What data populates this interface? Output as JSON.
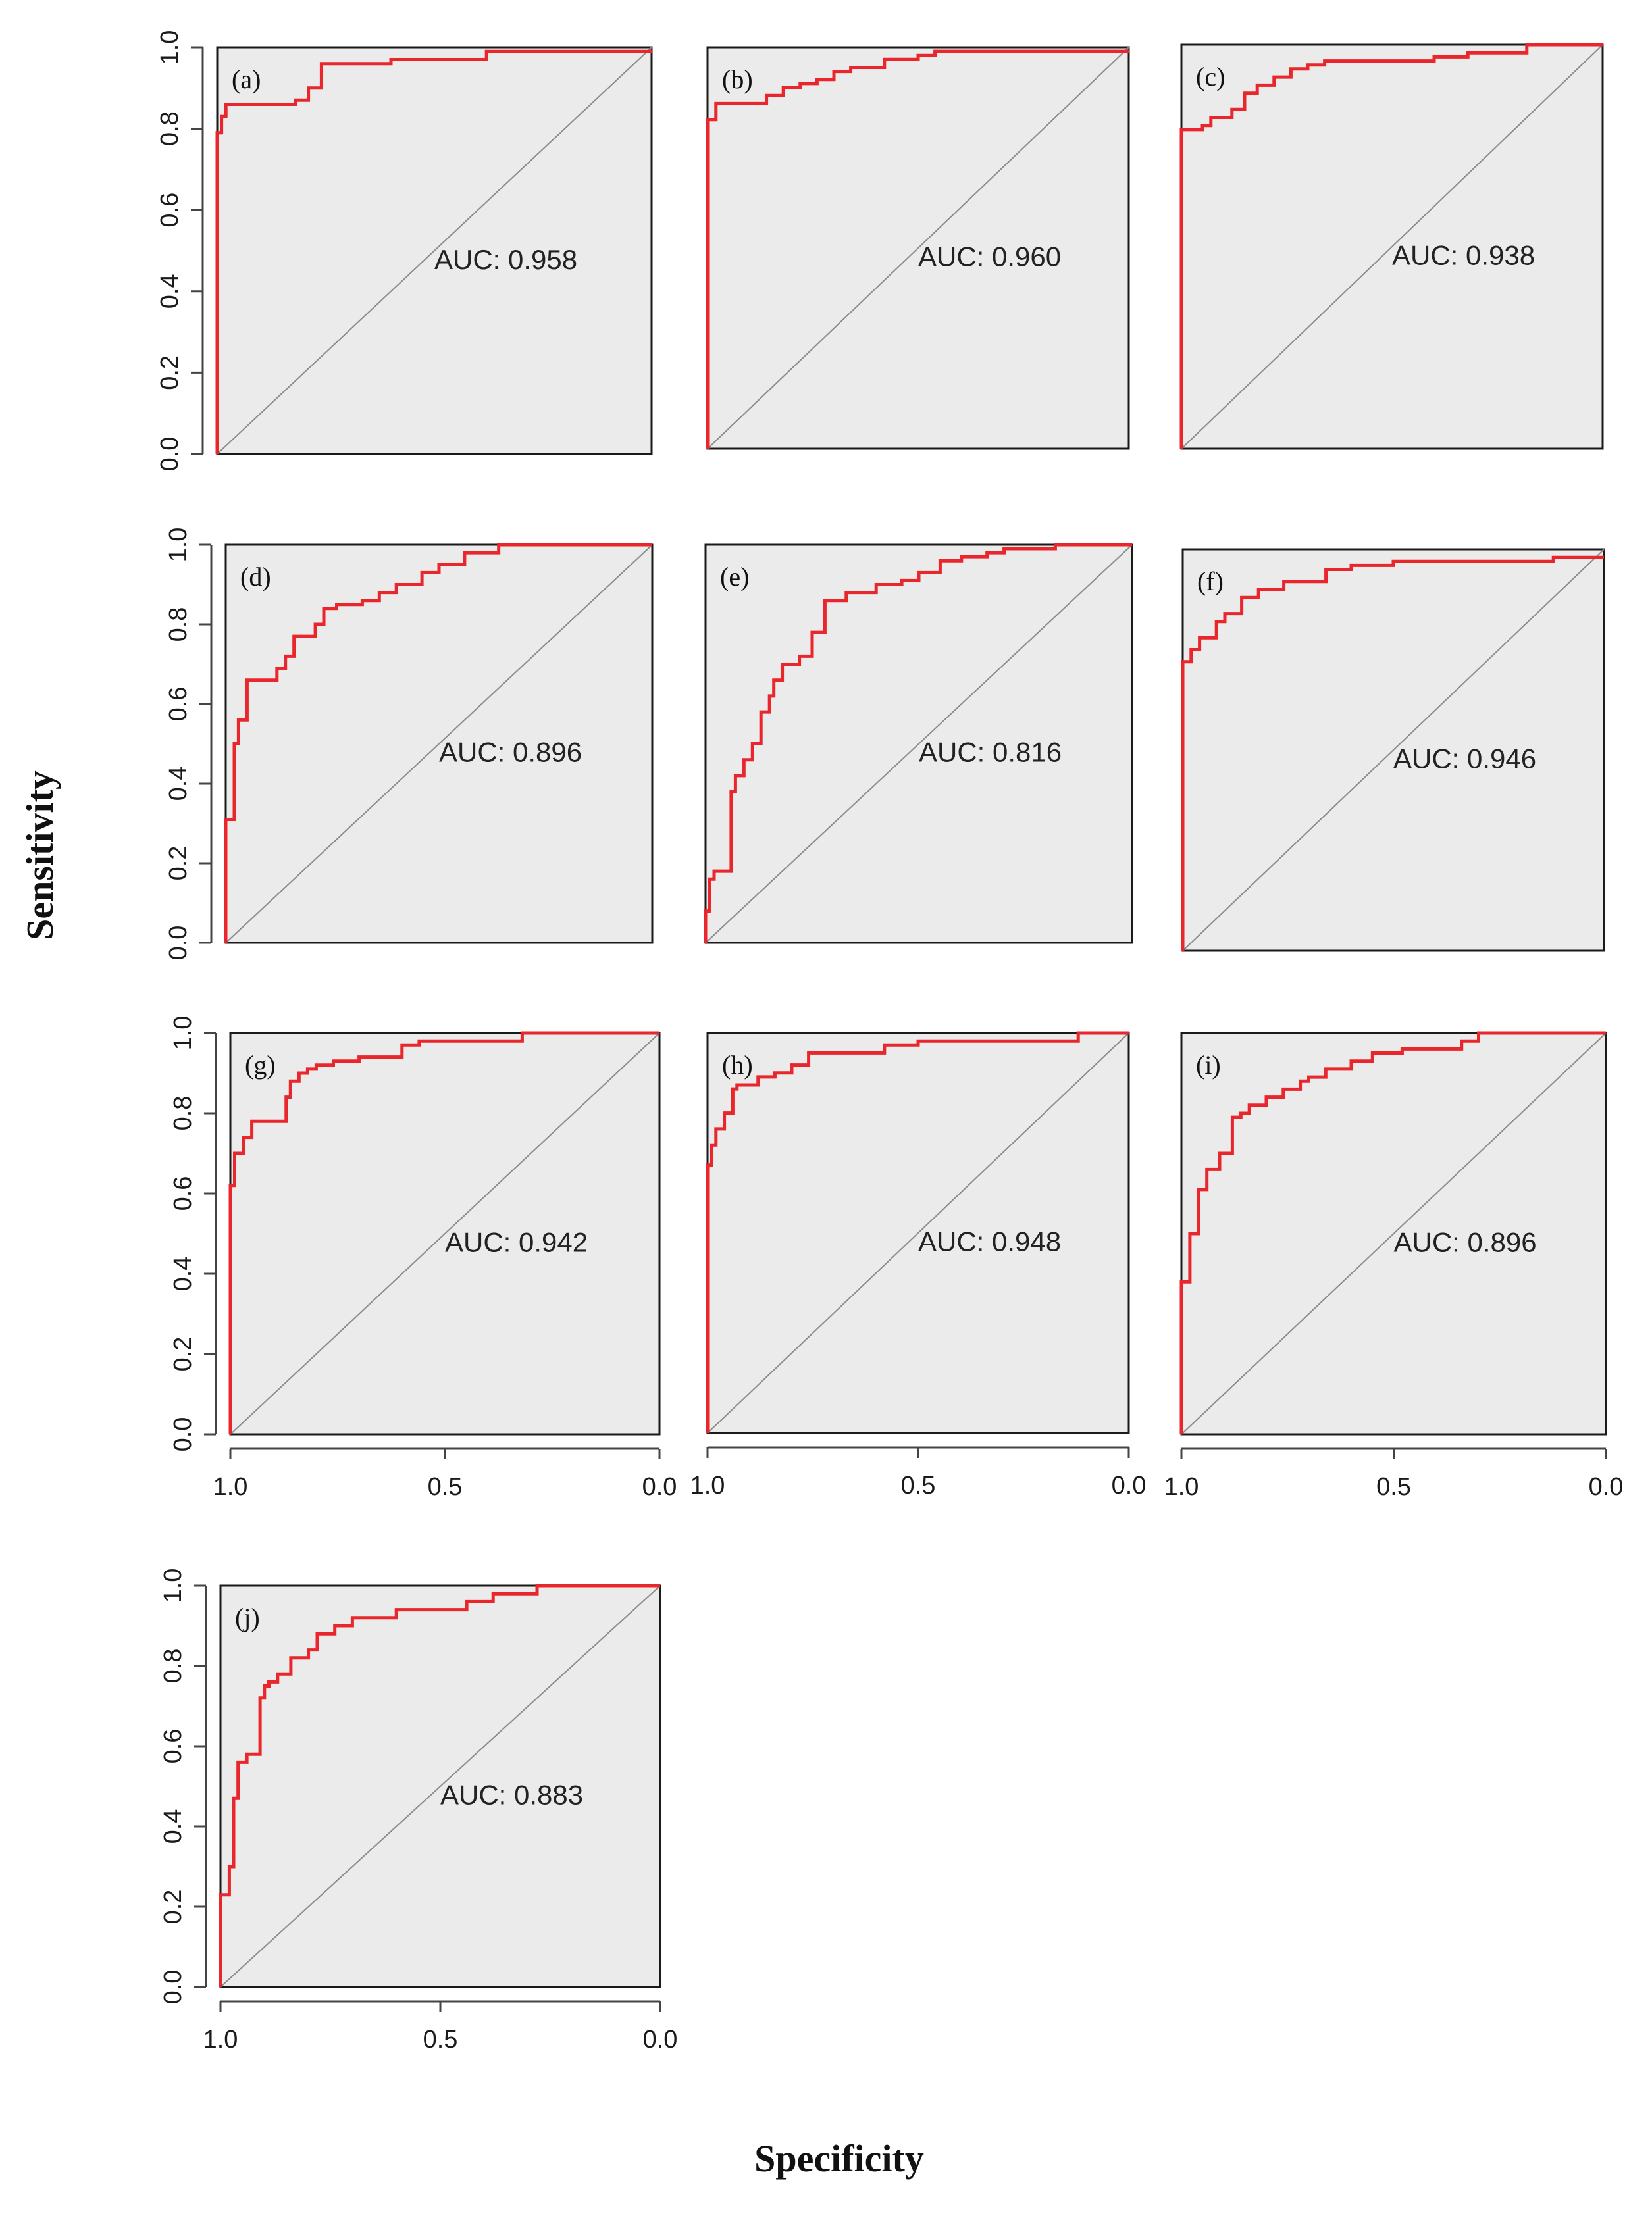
{
  "figure": {
    "xlabel": "Specificity",
    "ylabel": "Sensitivity",
    "colors": {
      "roc": "#e8262b",
      "panel_bg": "#ebebeb",
      "frame": "#1a1a1a",
      "axis": "#444444",
      "diagonal": "#8a8a8a"
    }
  },
  "chart_data": [
    {
      "type": "line",
      "label": "(a)",
      "auc_text": "AUC: 0.958",
      "auc": 0.958,
      "xlabel": "Specificity",
      "ylabel": "Sensitivity",
      "xlim": [
        1.0,
        0.0
      ],
      "ylim": [
        0.0,
        1.0
      ],
      "x_ticks": [
        "1.0",
        "0.5",
        "0.0"
      ],
      "y_ticks": [
        "0.0",
        "0.2",
        "0.4",
        "0.6",
        "0.8",
        "1.0"
      ],
      "show_x_ticks": false,
      "series": [
        {
          "name": "ROC",
          "specificity": [
            1.0,
            1.0,
            0.99,
            0.99,
            0.98,
            0.98,
            0.82,
            0.82,
            0.79,
            0.79,
            0.76,
            0.76,
            0.6,
            0.6,
            0.38,
            0.38,
            0.0
          ],
          "sensitivity": [
            0.0,
            0.79,
            0.79,
            0.83,
            0.83,
            0.86,
            0.86,
            0.87,
            0.87,
            0.9,
            0.9,
            0.96,
            0.96,
            0.97,
            0.97,
            0.99,
            0.99
          ]
        }
      ]
    },
    {
      "type": "line",
      "label": "(b)",
      "auc_text": "AUC: 0.960",
      "auc": 0.96,
      "xlabel": "Specificity",
      "ylabel": "Sensitivity",
      "xlim": [
        1.0,
        0.0
      ],
      "ylim": [
        0.0,
        1.0
      ],
      "x_ticks": [
        "1.0",
        "0.5",
        "0.0"
      ],
      "y_ticks": [],
      "show_x_ticks": false,
      "series": [
        {
          "name": "ROC",
          "specificity": [
            1.0,
            1.0,
            0.98,
            0.98,
            0.86,
            0.86,
            0.82,
            0.82,
            0.78,
            0.78,
            0.74,
            0.74,
            0.7,
            0.7,
            0.66,
            0.66,
            0.58,
            0.58,
            0.5,
            0.5,
            0.46,
            0.46,
            0.0
          ],
          "sensitivity": [
            0.0,
            0.82,
            0.82,
            0.86,
            0.86,
            0.88,
            0.88,
            0.9,
            0.9,
            0.91,
            0.91,
            0.92,
            0.92,
            0.94,
            0.94,
            0.95,
            0.95,
            0.97,
            0.97,
            0.98,
            0.98,
            0.99,
            0.99
          ]
        }
      ]
    },
    {
      "type": "line",
      "label": "(c)",
      "auc_text": "AUC: 0.938",
      "auc": 0.938,
      "xlabel": "Specificity",
      "ylabel": "Sensitivity",
      "xlim": [
        1.0,
        0.0
      ],
      "ylim": [
        0.0,
        1.0
      ],
      "x_ticks": [
        "1.0",
        "0.5",
        "0.0"
      ],
      "y_ticks": [],
      "show_x_ticks": false,
      "series": [
        {
          "name": "ROC",
          "specificity": [
            1.0,
            1.0,
            0.95,
            0.95,
            0.93,
            0.93,
            0.88,
            0.88,
            0.85,
            0.85,
            0.82,
            0.82,
            0.78,
            0.78,
            0.74,
            0.74,
            0.7,
            0.7,
            0.66,
            0.66,
            0.4,
            0.4,
            0.32,
            0.32,
            0.18,
            0.18,
            0.0
          ],
          "sensitivity": [
            0.0,
            0.79,
            0.79,
            0.8,
            0.8,
            0.82,
            0.82,
            0.84,
            0.84,
            0.88,
            0.88,
            0.9,
            0.9,
            0.92,
            0.92,
            0.94,
            0.94,
            0.95,
            0.95,
            0.96,
            0.96,
            0.97,
            0.97,
            0.98,
            0.98,
            1.0,
            1.0
          ]
        }
      ]
    },
    {
      "type": "line",
      "label": "(d)",
      "auc_text": "AUC: 0.896",
      "auc": 0.896,
      "xlabel": "Specificity",
      "ylabel": "Sensitivity",
      "xlim": [
        1.0,
        0.0
      ],
      "ylim": [
        0.0,
        1.0
      ],
      "x_ticks": [
        "1.0",
        "0.5",
        "0.0"
      ],
      "y_ticks": [
        "0.0",
        "0.2",
        "0.4",
        "0.6",
        "0.8",
        "1.0"
      ],
      "show_x_ticks": false,
      "series": [
        {
          "name": "ROC",
          "specificity": [
            1.0,
            1.0,
            0.98,
            0.98,
            0.97,
            0.97,
            0.95,
            0.95,
            0.88,
            0.88,
            0.86,
            0.86,
            0.84,
            0.84,
            0.79,
            0.79,
            0.77,
            0.77,
            0.74,
            0.74,
            0.68,
            0.68,
            0.64,
            0.64,
            0.6,
            0.6,
            0.54,
            0.54,
            0.5,
            0.5,
            0.44,
            0.44,
            0.36,
            0.36,
            0.0
          ],
          "sensitivity": [
            0.0,
            0.31,
            0.31,
            0.5,
            0.5,
            0.56,
            0.56,
            0.66,
            0.66,
            0.69,
            0.69,
            0.72,
            0.72,
            0.77,
            0.77,
            0.8,
            0.8,
            0.84,
            0.84,
            0.85,
            0.85,
            0.86,
            0.86,
            0.88,
            0.88,
            0.9,
            0.9,
            0.93,
            0.93,
            0.95,
            0.95,
            0.98,
            0.98,
            1.0,
            1.0
          ]
        }
      ]
    },
    {
      "type": "line",
      "label": "(e)",
      "auc_text": "AUC: 0.816",
      "auc": 0.816,
      "xlabel": "Specificity",
      "ylabel": "Sensitivity",
      "xlim": [
        1.0,
        0.0
      ],
      "ylim": [
        0.0,
        1.0
      ],
      "x_ticks": [
        "1.0",
        "0.5",
        "0.0"
      ],
      "y_ticks": [],
      "show_x_ticks": false,
      "series": [
        {
          "name": "ROC",
          "specificity": [
            1.0,
            1.0,
            0.99,
            0.99,
            0.98,
            0.98,
            0.94,
            0.94,
            0.93,
            0.93,
            0.91,
            0.91,
            0.89,
            0.89,
            0.87,
            0.87,
            0.85,
            0.85,
            0.84,
            0.84,
            0.82,
            0.82,
            0.78,
            0.78,
            0.75,
            0.75,
            0.72,
            0.72,
            0.67,
            0.67,
            0.6,
            0.6,
            0.54,
            0.54,
            0.5,
            0.5,
            0.45,
            0.45,
            0.4,
            0.4,
            0.34,
            0.34,
            0.3,
            0.3,
            0.18,
            0.18,
            0.0
          ],
          "sensitivity": [
            0.0,
            0.08,
            0.08,
            0.16,
            0.16,
            0.18,
            0.18,
            0.38,
            0.38,
            0.42,
            0.42,
            0.46,
            0.46,
            0.5,
            0.5,
            0.58,
            0.58,
            0.62,
            0.62,
            0.66,
            0.66,
            0.7,
            0.7,
            0.72,
            0.72,
            0.78,
            0.78,
            0.86,
            0.86,
            0.88,
            0.88,
            0.9,
            0.9,
            0.91,
            0.91,
            0.93,
            0.93,
            0.96,
            0.96,
            0.97,
            0.97,
            0.98,
            0.98,
            0.99,
            0.99,
            1.0,
            1.0
          ]
        }
      ]
    },
    {
      "type": "line",
      "label": "(f)",
      "auc_text": "AUC: 0.946",
      "auc": 0.946,
      "xlabel": "Specificity",
      "ylabel": "Sensitivity",
      "xlim": [
        1.0,
        0.0
      ],
      "ylim": [
        0.0,
        1.0
      ],
      "x_ticks": [
        "1.0",
        "0.5",
        "0.0"
      ],
      "y_ticks": [],
      "show_x_ticks": false,
      "series": [
        {
          "name": "ROC",
          "specificity": [
            1.0,
            1.0,
            0.98,
            0.98,
            0.96,
            0.96,
            0.92,
            0.92,
            0.9,
            0.9,
            0.86,
            0.86,
            0.82,
            0.82,
            0.76,
            0.76,
            0.66,
            0.66,
            0.6,
            0.6,
            0.5,
            0.5,
            0.12,
            0.12,
            0.0
          ],
          "sensitivity": [
            0.0,
            0.72,
            0.72,
            0.75,
            0.75,
            0.78,
            0.78,
            0.82,
            0.82,
            0.84,
            0.84,
            0.88,
            0.88,
            0.9,
            0.9,
            0.92,
            0.92,
            0.95,
            0.95,
            0.96,
            0.96,
            0.97,
            0.97,
            0.98,
            0.98
          ]
        }
      ]
    },
    {
      "type": "line",
      "label": "(g)",
      "auc_text": "AUC: 0.942",
      "auc": 0.942,
      "xlabel": "Specificity",
      "ylabel": "Sensitivity",
      "xlim": [
        1.0,
        0.0
      ],
      "ylim": [
        0.0,
        1.0
      ],
      "x_ticks": [
        "1.0",
        "0.5",
        "0.0"
      ],
      "y_ticks": [
        "0.0",
        "0.2",
        "0.4",
        "0.6",
        "0.8",
        "1.0"
      ],
      "show_x_ticks": true,
      "series": [
        {
          "name": "ROC",
          "specificity": [
            1.0,
            1.0,
            0.99,
            0.99,
            0.97,
            0.97,
            0.95,
            0.95,
            0.87,
            0.87,
            0.86,
            0.86,
            0.84,
            0.84,
            0.82,
            0.82,
            0.8,
            0.8,
            0.76,
            0.76,
            0.7,
            0.7,
            0.6,
            0.6,
            0.56,
            0.56,
            0.32,
            0.32,
            0.0
          ],
          "sensitivity": [
            0.0,
            0.62,
            0.62,
            0.7,
            0.7,
            0.74,
            0.74,
            0.78,
            0.78,
            0.84,
            0.84,
            0.88,
            0.88,
            0.9,
            0.9,
            0.91,
            0.91,
            0.92,
            0.92,
            0.93,
            0.93,
            0.94,
            0.94,
            0.97,
            0.97,
            0.98,
            0.98,
            1.0,
            1.0
          ]
        }
      ]
    },
    {
      "type": "line",
      "label": "(h)",
      "auc_text": "AUC: 0.948",
      "auc": 0.948,
      "xlabel": "Specificity",
      "ylabel": "Sensitivity",
      "xlim": [
        1.0,
        0.0
      ],
      "ylim": [
        0.0,
        1.0
      ],
      "x_ticks": [
        "1.0",
        "0.5",
        "0.0"
      ],
      "y_ticks": [],
      "show_x_ticks": true,
      "series": [
        {
          "name": "ROC",
          "specificity": [
            1.0,
            1.0,
            0.99,
            0.99,
            0.98,
            0.98,
            0.96,
            0.96,
            0.94,
            0.94,
            0.93,
            0.93,
            0.88,
            0.88,
            0.84,
            0.84,
            0.8,
            0.8,
            0.76,
            0.76,
            0.58,
            0.58,
            0.5,
            0.5,
            0.12,
            0.12,
            0.0
          ],
          "sensitivity": [
            0.0,
            0.67,
            0.67,
            0.72,
            0.72,
            0.76,
            0.76,
            0.8,
            0.8,
            0.86,
            0.86,
            0.87,
            0.87,
            0.89,
            0.89,
            0.9,
            0.9,
            0.92,
            0.92,
            0.95,
            0.95,
            0.97,
            0.97,
            0.98,
            0.98,
            1.0,
            1.0
          ]
        }
      ]
    },
    {
      "type": "line",
      "label": "(i)",
      "auc_text": "AUC: 0.896",
      "auc": 0.896,
      "xlabel": "Specificity",
      "ylabel": "Sensitivity",
      "xlim": [
        1.0,
        0.0
      ],
      "ylim": [
        0.0,
        1.0
      ],
      "x_ticks": [
        "1.0",
        "0.5",
        "0.0"
      ],
      "y_ticks": [],
      "show_x_ticks": true,
      "series": [
        {
          "name": "ROC",
          "specificity": [
            1.0,
            1.0,
            0.98,
            0.98,
            0.96,
            0.96,
            0.94,
            0.94,
            0.91,
            0.91,
            0.88,
            0.88,
            0.86,
            0.86,
            0.84,
            0.84,
            0.8,
            0.8,
            0.76,
            0.76,
            0.72,
            0.72,
            0.7,
            0.7,
            0.66,
            0.66,
            0.6,
            0.6,
            0.55,
            0.55,
            0.48,
            0.48,
            0.34,
            0.34,
            0.3,
            0.3,
            0.0
          ],
          "sensitivity": [
            0.0,
            0.38,
            0.38,
            0.5,
            0.5,
            0.61,
            0.61,
            0.66,
            0.66,
            0.7,
            0.7,
            0.79,
            0.79,
            0.8,
            0.8,
            0.82,
            0.82,
            0.84,
            0.84,
            0.86,
            0.86,
            0.88,
            0.88,
            0.89,
            0.89,
            0.91,
            0.91,
            0.93,
            0.93,
            0.95,
            0.95,
            0.96,
            0.96,
            0.98,
            0.98,
            1.0,
            1.0
          ]
        }
      ]
    },
    {
      "type": "line",
      "label": "(j)",
      "auc_text": "AUC: 0.883",
      "auc": 0.883,
      "xlabel": "Specificity",
      "ylabel": "Sensitivity",
      "xlim": [
        1.0,
        0.0
      ],
      "ylim": [
        0.0,
        1.0
      ],
      "x_ticks": [
        "1.0",
        "0.5",
        "0.0"
      ],
      "y_ticks": [
        "0.0",
        "0.2",
        "0.4",
        "0.6",
        "0.8",
        "1.0"
      ],
      "show_x_ticks": true,
      "series": [
        {
          "name": "ROC",
          "specificity": [
            1.0,
            1.0,
            0.98,
            0.98,
            0.97,
            0.97,
            0.96,
            0.96,
            0.94,
            0.94,
            0.91,
            0.91,
            0.9,
            0.9,
            0.89,
            0.89,
            0.87,
            0.87,
            0.84,
            0.84,
            0.8,
            0.8,
            0.78,
            0.78,
            0.74,
            0.74,
            0.7,
            0.7,
            0.6,
            0.6,
            0.44,
            0.44,
            0.38,
            0.38,
            0.28,
            0.28,
            0.0
          ],
          "sensitivity": [
            0.0,
            0.23,
            0.23,
            0.3,
            0.3,
            0.47,
            0.47,
            0.56,
            0.56,
            0.58,
            0.58,
            0.72,
            0.72,
            0.75,
            0.75,
            0.76,
            0.76,
            0.78,
            0.78,
            0.82,
            0.82,
            0.84,
            0.84,
            0.88,
            0.88,
            0.9,
            0.9,
            0.92,
            0.92,
            0.94,
            0.94,
            0.96,
            0.96,
            0.98,
            0.98,
            1.0,
            1.0
          ]
        }
      ]
    }
  ]
}
